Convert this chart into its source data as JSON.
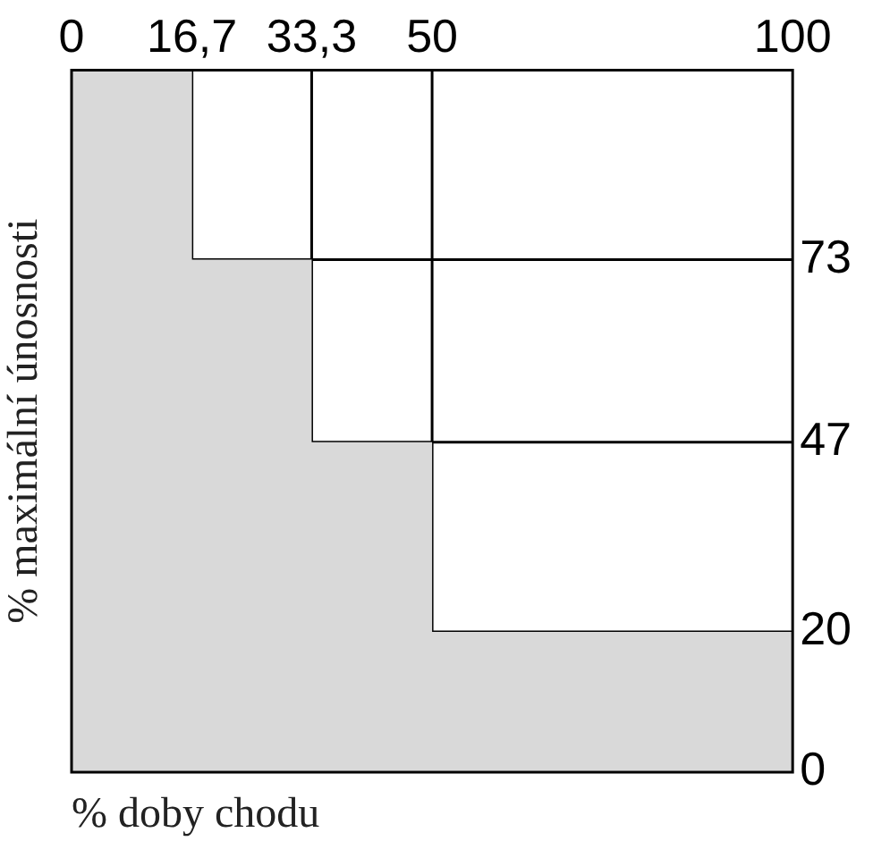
{
  "chart_data": {
    "type": "area",
    "xlabel": "% doby chodu",
    "ylabel": "% maximální únosnosti",
    "x": [
      0,
      16.7,
      33.3,
      50,
      100
    ],
    "series": [
      {
        "color": "#d9d9d9",
        "values": [
          100,
          73,
          47,
          20,
          20
        ]
      },
      {
        "type": "line",
        "color": "#000000",
        "x": [
          16.7,
          16.7,
          100
        ],
        "values": [
          100,
          73,
          73
        ]
      },
      {
        "type": "line",
        "color": "#000000",
        "x": [
          33.3,
          33.3,
          100
        ],
        "values": [
          100,
          47,
          47
        ]
      },
      {
        "type": "line",
        "color": "#000000",
        "x": [
          50,
          50,
          100
        ],
        "values": [
          100,
          20,
          20
        ]
      }
    ],
    "xlim": [
      0,
      100
    ],
    "xticks": [
      0,
      {
        "value": 16.7,
        "label": "16,7"
      },
      {
        "value": 33.3,
        "label": "33,3"
      },
      50,
      100
    ],
    "ylim": [
      0,
      100
    ],
    "yticks": [
      0,
      20,
      47,
      73
    ],
    "legend": false,
    "line_style": "solid",
    "marker": "none"
  }
}
